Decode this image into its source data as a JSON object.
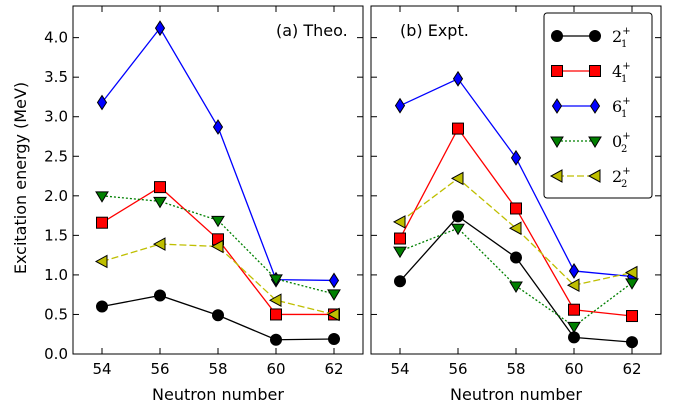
{
  "chart_data": [
    {
      "type": "line",
      "title": "(a) Theo.",
      "xlabel": "Neutron number",
      "ylabel": "Excitation energy (MeV)",
      "x": [
        54,
        56,
        58,
        60,
        62
      ],
      "xticks": [
        "54",
        "56",
        "58",
        "60",
        "62"
      ],
      "yticks": [
        "0.0",
        "0.5",
        "1.0",
        "1.5",
        "2.0",
        "2.5",
        "3.0",
        "3.5",
        "4.0"
      ],
      "xlim": [
        53,
        63
      ],
      "ylim": [
        0,
        4.4
      ],
      "grid": false,
      "series": [
        {
          "key": "s21",
          "color": "#000000",
          "values": [
            0.6,
            0.74,
            0.49,
            0.18,
            0.19
          ]
        },
        {
          "key": "s41",
          "color": "#ff0000",
          "values": [
            1.66,
            2.11,
            1.45,
            0.5,
            0.5
          ]
        },
        {
          "key": "s61",
          "color": "#0000ff",
          "values": [
            3.18,
            4.12,
            2.87,
            0.94,
            0.93
          ]
        },
        {
          "key": "s02",
          "color": "#008000",
          "values": [
            2.0,
            1.93,
            1.69,
            0.95,
            0.76
          ]
        },
        {
          "key": "s22",
          "color": "#bfbf00",
          "values": [
            1.17,
            1.39,
            1.36,
            0.68,
            0.5
          ]
        }
      ]
    },
    {
      "type": "line",
      "title": "(b) Expt.",
      "xlabel": "Neutron number",
      "x": [
        54,
        56,
        58,
        60,
        62
      ],
      "xticks": [
        "54",
        "56",
        "58",
        "60",
        "62"
      ],
      "xlim": [
        53,
        63
      ],
      "ylim": [
        0,
        4.4
      ],
      "grid": false,
      "legend_position": "top-right",
      "series": [
        {
          "key": "s21",
          "name_base": "2",
          "name_sub": "1",
          "name_sup": "+",
          "color": "#000000",
          "values": [
            0.92,
            1.74,
            1.22,
            0.21,
            0.15
          ]
        },
        {
          "key": "s41",
          "name_base": "4",
          "name_sub": "1",
          "name_sup": "+",
          "color": "#ff0000",
          "values": [
            1.46,
            2.85,
            1.84,
            0.56,
            0.48
          ]
        },
        {
          "key": "s61",
          "name_base": "6",
          "name_sub": "1",
          "name_sup": "+",
          "color": "#0000ff",
          "values": [
            3.14,
            3.48,
            2.48,
            1.05,
            0.98
          ]
        },
        {
          "key": "s02",
          "name_base": "0",
          "name_sub": "2",
          "name_sup": "+",
          "color": "#008000",
          "values": [
            1.3,
            1.59,
            0.86,
            0.35,
            0.9
          ]
        },
        {
          "key": "s22",
          "name_base": "2",
          "name_sub": "2",
          "name_sup": "+",
          "color": "#bfbf00",
          "values": [
            1.67,
            2.22,
            1.59,
            0.87,
            1.03
          ]
        }
      ]
    }
  ]
}
